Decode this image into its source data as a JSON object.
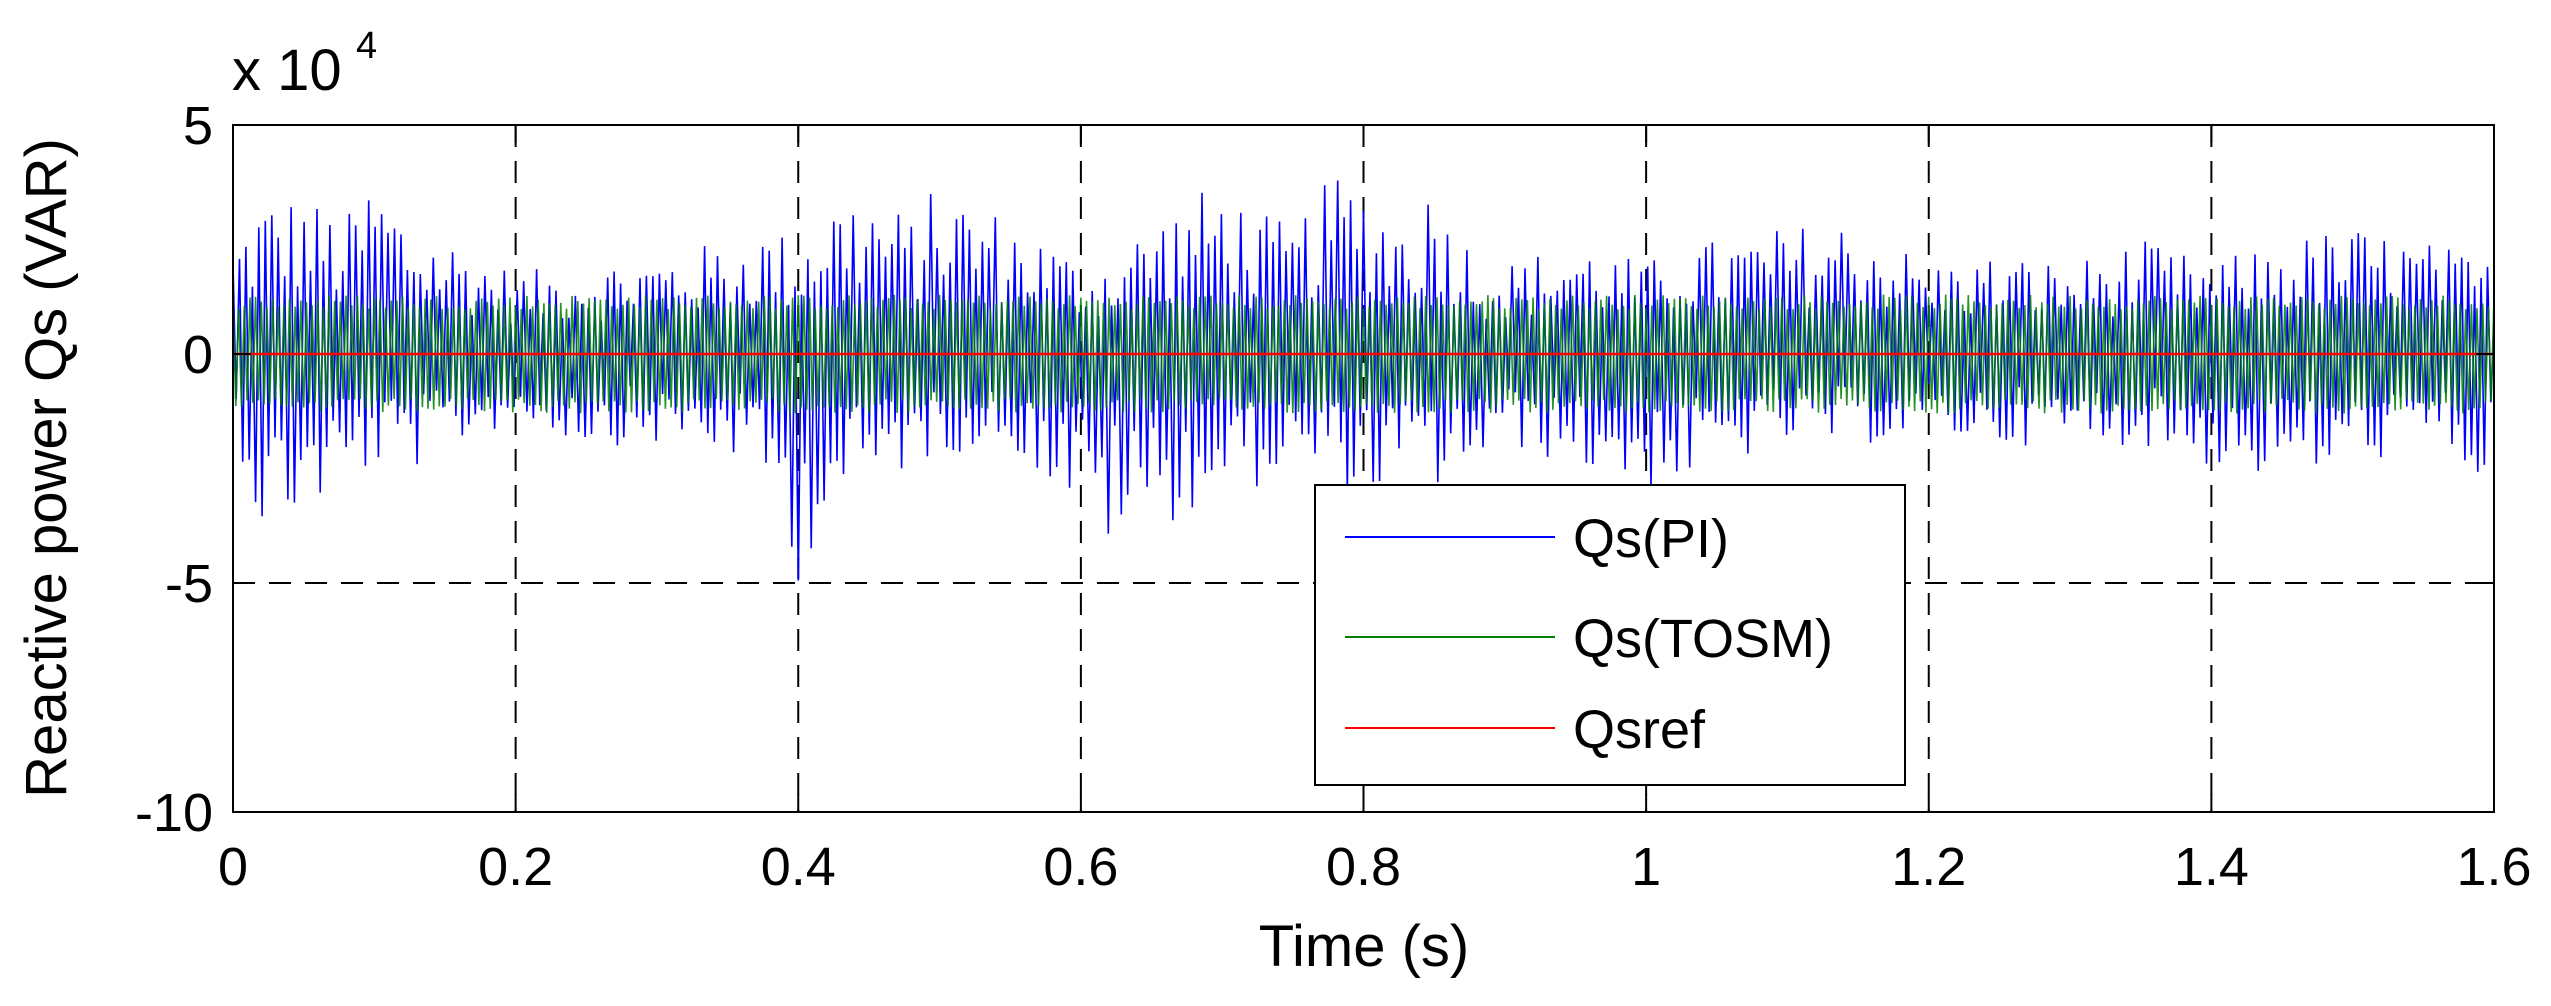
{
  "chart_data": {
    "type": "line",
    "title": "",
    "xlabel": "Time (s)",
    "ylabel": "Reactive power Qs (VAR)",
    "y_multiplier_label": "x 10",
    "y_multiplier_exponent": "4",
    "xlim": [
      0,
      1.6
    ],
    "ylim": [
      -10,
      5
    ],
    "y_scale": 10000,
    "x_ticks": [
      0,
      0.2,
      0.4,
      0.6,
      0.8,
      1,
      1.2,
      1.4,
      1.6
    ],
    "x_tick_labels": [
      "0",
      "0.2",
      "0.4",
      "0.6",
      "0.8",
      "1",
      "1.2",
      "1.4",
      "1.6"
    ],
    "y_ticks": [
      5,
      0,
      -5,
      -10
    ],
    "y_tick_labels": [
      "5",
      "0",
      "-5",
      "-10"
    ],
    "grid": true,
    "legend_position": "lower-right",
    "series": [
      {
        "name": "Qs(PI)",
        "color": "#0000ff",
        "x": [
          0,
          0.02,
          0.05,
          0.08,
          0.1,
          0.13,
          0.16,
          0.2,
          0.25,
          0.3,
          0.35,
          0.38,
          0.4,
          0.42,
          0.45,
          0.48,
          0.5,
          0.55,
          0.58,
          0.6,
          0.62,
          0.65,
          0.68,
          0.7,
          0.72,
          0.75,
          0.78,
          0.8,
          0.83,
          0.85,
          0.88,
          0.9,
          0.95,
          1,
          1.03,
          1.05,
          1.1,
          1.15,
          1.2,
          1.25,
          1.3,
          1.35,
          1.4,
          1.45,
          1.5,
          1.55,
          1.6
        ],
        "upper": [
          2.5,
          3.5,
          3.5,
          3.0,
          4.0,
          2.8,
          2.5,
          1.8,
          2.0,
          2.2,
          2.5,
          2.8,
          2.5,
          3.5,
          3.6,
          3.0,
          3.8,
          3.0,
          2.5,
          2.0,
          2.2,
          3.0,
          3.5,
          3.8,
          3.2,
          2.8,
          4.0,
          3.8,
          3.0,
          3.8,
          2.2,
          2.0,
          2.5,
          2.0,
          2.5,
          2.5,
          2.8,
          3.0,
          2.0,
          2.2,
          2.0,
          2.5,
          2.0,
          2.5,
          2.8,
          2.5,
          2.0
        ],
        "lower": [
          -1.5,
          -4.0,
          -3.5,
          -3.0,
          -2.5,
          -2.5,
          -2.0,
          -1.5,
          -2.0,
          -2.0,
          -2.2,
          -3.0,
          -5.0,
          -3.5,
          -3.0,
          -2.5,
          -2.2,
          -2.0,
          -3.0,
          -3.5,
          -4.2,
          -3.8,
          -3.5,
          -3.0,
          -3.0,
          -2.5,
          -3.0,
          -3.2,
          -2.8,
          -3.0,
          -2.5,
          -2.0,
          -2.5,
          -3.0,
          -2.8,
          -2.5,
          -2.0,
          -2.0,
          -1.8,
          -2.0,
          -2.0,
          -2.0,
          -2.5,
          -2.8,
          -2.5,
          -2.0,
          -3.0
        ]
      },
      {
        "name": "Qs(TOSM)",
        "color": "#008000",
        "x": [
          0,
          0.2,
          0.4,
          0.6,
          0.8,
          1,
          1.2,
          1.4,
          1.6
        ],
        "upper": [
          1.3,
          1.3,
          1.3,
          1.3,
          1.3,
          1.3,
          1.3,
          1.3,
          1.3
        ],
        "lower": [
          -1.3,
          -1.3,
          -1.3,
          -1.3,
          -1.3,
          -1.3,
          -1.3,
          -1.3,
          -1.3
        ]
      },
      {
        "name": "Qsref",
        "color": "#ff0000",
        "x": [
          0,
          1.6
        ],
        "values": [
          0,
          0
        ]
      }
    ]
  }
}
